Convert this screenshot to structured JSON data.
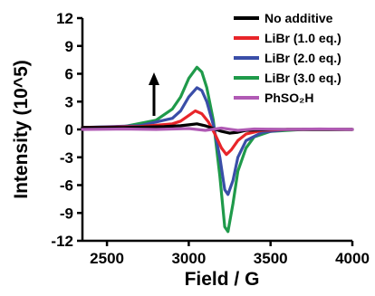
{
  "chart_data": {
    "type": "line",
    "xlabel": "Field / G",
    "ylabel": "Intensity (10^5)",
    "xlim": [
      2350,
      4000
    ],
    "ylim": [
      -12,
      12
    ],
    "x_ticks": [
      2500,
      3000,
      3500,
      4000
    ],
    "y_ticks": [
      12,
      9,
      6,
      3,
      0,
      -3,
      -6,
      -9,
      -12
    ],
    "grid": false,
    "legend_position": "top-right",
    "annotation": "upward arrow",
    "series": [
      {
        "name": "No additive",
        "color": "#000000",
        "x": [
          2350,
          2600,
          2850,
          2950,
          3000,
          3050,
          3100,
          3150,
          3200,
          3250,
          3300,
          3350,
          3500,
          3700,
          4000
        ],
        "y": [
          0.2,
          0.2,
          0.3,
          0.4,
          0.5,
          0.6,
          0.4,
          0.1,
          -0.2,
          -0.4,
          -0.3,
          -0.1,
          0.0,
          0.0,
          0.0
        ]
      },
      {
        "name": "LiBr (1.0 eq.)",
        "color": "#e8252a",
        "x": [
          2350,
          2700,
          2900,
          2950,
          3000,
          3040,
          3080,
          3120,
          3160,
          3200,
          3230,
          3260,
          3300,
          3350,
          3450,
          3600,
          4000
        ],
        "y": [
          0.2,
          0.3,
          0.6,
          0.9,
          1.5,
          2.0,
          1.7,
          0.8,
          -0.5,
          -2.0,
          -2.7,
          -2.2,
          -1.2,
          -0.5,
          -0.1,
          0.0,
          0.0
        ]
      },
      {
        "name": "LiBr (2.0 eq.)",
        "color": "#3a4ea8",
        "x": [
          2350,
          2700,
          2900,
          2950,
          3000,
          3050,
          3080,
          3110,
          3150,
          3190,
          3220,
          3240,
          3270,
          3300,
          3350,
          3450,
          3600,
          4000
        ],
        "y": [
          0.2,
          0.4,
          1.2,
          2.0,
          3.5,
          4.5,
          4.2,
          3.0,
          0.5,
          -3.0,
          -6.5,
          -7.0,
          -5.5,
          -3.0,
          -1.2,
          -0.3,
          0.0,
          0.0
        ]
      },
      {
        "name": "LiBr (3.0 eq.)",
        "color": "#1f9a4a",
        "x": [
          2350,
          2600,
          2800,
          2900,
          2950,
          3000,
          3050,
          3080,
          3110,
          3150,
          3190,
          3220,
          3240,
          3270,
          3300,
          3350,
          3400,
          3500,
          3700,
          4000
        ],
        "y": [
          0.2,
          0.3,
          1.0,
          2.2,
          3.5,
          5.5,
          6.7,
          6.2,
          4.5,
          1.0,
          -5.0,
          -10.5,
          -11.0,
          -8.0,
          -4.5,
          -2.0,
          -0.8,
          -0.2,
          0.0,
          0.0
        ]
      },
      {
        "name": "PhSO₂H",
        "color": "#b05ab4",
        "x": [
          2350,
          2600,
          2800,
          3000,
          3100,
          3200,
          3300,
          3400,
          3600,
          3800,
          4000
        ],
        "y": [
          0.0,
          0.05,
          0.0,
          0.1,
          -0.1,
          0.15,
          -0.1,
          0.05,
          0.0,
          0.05,
          0.0
        ]
      }
    ]
  }
}
